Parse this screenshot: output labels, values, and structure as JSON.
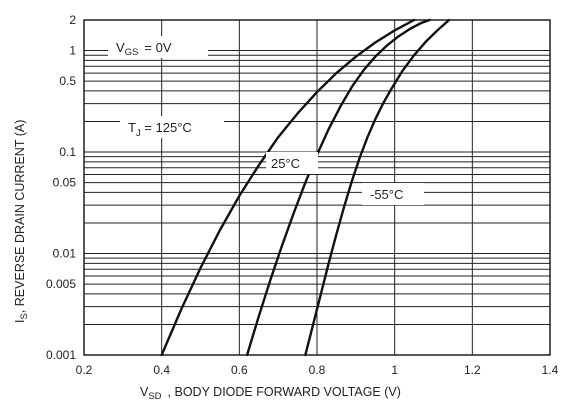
{
  "chart_data": {
    "type": "line",
    "xlabel": {
      "main": "V",
      "sub": "SD",
      "rest": ", BODY DIODE FORWARD VOLTAGE (V)"
    },
    "ylabel": {
      "main": "I",
      "sub": "S",
      "rest": ", REVERSE DRAIN CURRENT (A)"
    },
    "xlim": [
      0.2,
      1.4
    ],
    "ylim": [
      0.001,
      2
    ],
    "yscale": "log",
    "grid": true,
    "x_ticks": [
      {
        "value": 0.2,
        "label": "0.2"
      },
      {
        "value": 0.4,
        "label": "0.4"
      },
      {
        "value": 0.6,
        "label": "0.6"
      },
      {
        "value": 0.8,
        "label": "0.8"
      },
      {
        "value": 1.0,
        "label": "1"
      },
      {
        "value": 1.2,
        "label": "1.2"
      },
      {
        "value": 1.4,
        "label": "1.4"
      }
    ],
    "y_ticks": [
      {
        "value": 0.001,
        "label": "0.001"
      },
      {
        "value": 0.005,
        "label": "0.005"
      },
      {
        "value": 0.01,
        "label": "0.01"
      },
      {
        "value": 0.05,
        "label": "0.05"
      },
      {
        "value": 0.1,
        "label": "0.1"
      },
      {
        "value": 0.5,
        "label": "0.5"
      },
      {
        "value": 1,
        "label": "1"
      },
      {
        "value": 2,
        "label": "2"
      }
    ],
    "annotation": {
      "main": "V",
      "sub": "GS",
      "rest": "= 0V"
    },
    "series": [
      {
        "name": "T_J = 125°C",
        "label": {
          "main": "T",
          "sub": "J",
          "rest": " = 125°C"
        },
        "x": [
          0.4,
          0.45,
          0.5,
          0.55,
          0.6,
          0.65,
          0.7,
          0.75,
          0.8,
          0.85,
          0.9,
          0.95,
          1.0,
          1.05
        ],
        "y": [
          0.001,
          0.0028,
          0.0072,
          0.017,
          0.037,
          0.074,
          0.14,
          0.24,
          0.39,
          0.6,
          0.87,
          1.2,
          1.58,
          2.0
        ]
      },
      {
        "name": "25°C",
        "label": {
          "main": "25°C",
          "sub": "",
          "rest": ""
        },
        "x": [
          0.62,
          0.65,
          0.68,
          0.71,
          0.74,
          0.77,
          0.8,
          0.83,
          0.86,
          0.89,
          0.92,
          0.95,
          0.98,
          1.01,
          1.04,
          1.07,
          1.09
        ],
        "y": [
          0.001,
          0.0024,
          0.0055,
          0.012,
          0.025,
          0.05,
          0.094,
          0.168,
          0.28,
          0.44,
          0.64,
          0.87,
          1.12,
          1.38,
          1.64,
          1.88,
          2.0
        ]
      },
      {
        "name": "-55°C",
        "label": {
          "main": "-55°C",
          "sub": "",
          "rest": ""
        },
        "x": [
          0.77,
          0.79,
          0.81,
          0.83,
          0.85,
          0.87,
          0.89,
          0.91,
          0.93,
          0.95,
          0.97,
          0.99,
          1.02,
          1.05,
          1.08,
          1.11,
          1.14
        ],
        "y": [
          0.001,
          0.002,
          0.004,
          0.008,
          0.0155,
          0.029,
          0.052,
          0.088,
          0.14,
          0.21,
          0.3,
          0.41,
          0.63,
          0.9,
          1.22,
          1.58,
          2.0
        ]
      }
    ]
  }
}
